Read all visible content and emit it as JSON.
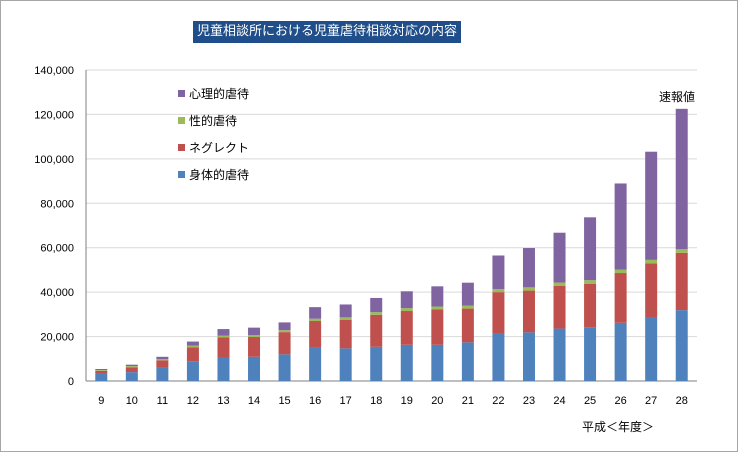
{
  "chart_data": {
    "type": "bar",
    "stacked": true,
    "title": "児童相談所における児童虐待相談対応の内容",
    "xlabel": "平成＜年度＞",
    "ylabel": "",
    "annotation": "速報値",
    "categories": [
      "9",
      "10",
      "11",
      "12",
      "13",
      "14",
      "15",
      "16",
      "17",
      "18",
      "19",
      "20",
      "21",
      "22",
      "23",
      "24",
      "25",
      "26",
      "27",
      "28"
    ],
    "ylim": [
      0,
      140000
    ],
    "yticks": [
      "0",
      "20,000",
      "40,000",
      "60,000",
      "80,000",
      "100,000",
      "120,000",
      "140,000"
    ],
    "grid": true,
    "legend_position": "top-left",
    "series": [
      {
        "name": "身体的虐待",
        "color": "#4f81bd",
        "values": [
          3350,
          4000,
          5900,
          8900,
          10800,
          10900,
          12000,
          14900,
          14700,
          15400,
          16300,
          16300,
          17400,
          21600,
          21900,
          23600,
          24200,
          26200,
          28600,
          31900
        ]
      },
      {
        "name": "ネグレクト",
        "color": "#c0504d",
        "values": [
          1250,
          2100,
          3400,
          6300,
          8800,
          8900,
          10000,
          12100,
          12900,
          14400,
          15200,
          15900,
          15200,
          18400,
          18800,
          19300,
          19600,
          22400,
          24400,
          25800
        ]
      },
      {
        "name": "性的虐待",
        "color": "#9bbb59",
        "values": [
          300,
          590,
          590,
          750,
          780,
          820,
          880,
          1050,
          1050,
          1180,
          1290,
          1320,
          1350,
          1400,
          1460,
          1450,
          1580,
          1520,
          1520,
          1620
        ]
      },
      {
        "name": "心理的虐待",
        "color": "#8064a2",
        "values": [
          500,
          650,
          1000,
          1800,
          3000,
          3400,
          3500,
          5200,
          5800,
          6400,
          7600,
          9100,
          10300,
          15100,
          17700,
          22400,
          28300,
          38800,
          48700,
          63200
        ]
      }
    ]
  }
}
